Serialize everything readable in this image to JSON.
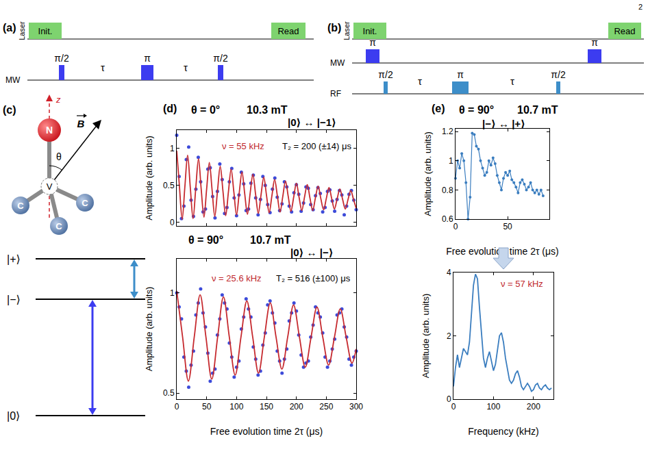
{
  "page_number": "2",
  "panel_labels": [
    "(a)",
    "(b)",
    "(c)",
    "(d)",
    "(e)"
  ],
  "pulse_sequences": [
    {
      "channels": [
        {
          "name": "Laser",
          "pulses": [
            "Init.",
            "Read"
          ]
        },
        {
          "name": "MW",
          "pulses": [
            "π/2",
            "π",
            "π/2"
          ],
          "delays": [
            "τ",
            "τ"
          ]
        }
      ]
    },
    {
      "channels": [
        {
          "name": "Laser",
          "pulses": [
            "Init.",
            "Read"
          ]
        },
        {
          "name": "MW",
          "pulses": [
            "π",
            "π"
          ]
        },
        {
          "name": "RF",
          "pulses": [
            "π/2",
            "π",
            "π/2"
          ],
          "delays": [
            "τ",
            "τ"
          ]
        }
      ]
    }
  ],
  "nv_center": {
    "atoms": {
      "nitrogen": "N",
      "vacancy": "V",
      "carbon": "C"
    },
    "axis": "z",
    "field": "B",
    "angle": "θ"
  },
  "energy_levels": [
    "|+⟩",
    "|−⟩",
    "|0⟩"
  ],
  "chart_data": [
    {
      "type": "scatter",
      "title": "θ = 0°",
      "subtitle": "10.3 mT",
      "annotations": [
        {
          "text": "|0⟩ ↔ |−1⟩"
        },
        {
          "text": "ν = 55 kHz",
          "color": "#c0282d"
        },
        {
          "text": "T₂ = 200 (±14) μs"
        }
      ],
      "y_label": "Amplitude (arb. units)",
      "xlim": [
        0,
        300
      ],
      "xticks": [
        0,
        50,
        100,
        150,
        200,
        250,
        300
      ],
      "ylim": [
        -0.05,
        1.25
      ],
      "yticks": [
        0,
        0.5,
        1
      ],
      "tick_labels": "y",
      "grid": false,
      "series": [
        {
          "type": "scatter",
          "marker": "circle",
          "color": "#3d4bd9",
          "x": [
            0,
            4,
            8,
            12,
            16,
            20,
            24,
            28,
            32,
            36,
            40,
            44,
            48,
            52,
            56,
            60,
            64,
            68,
            72,
            76,
            80,
            84,
            88,
            92,
            96,
            100,
            104,
            108,
            112,
            116,
            120,
            124,
            128,
            132,
            136,
            140,
            144,
            148,
            152,
            156,
            160,
            164,
            168,
            172,
            176,
            180,
            184,
            188,
            192,
            196,
            200,
            204,
            208,
            212,
            216,
            220,
            224,
            228,
            232,
            236,
            240,
            244,
            248,
            252,
            256,
            260,
            264,
            268,
            272,
            276,
            280,
            284,
            288,
            292,
            296,
            300
          ],
          "values": [
            1.18,
            0.62,
            0.05,
            0.22,
            0.85,
            1.02,
            0.3,
            0.08,
            0.45,
            0.88,
            0.55,
            0.14,
            0.18,
            0.72,
            0.74,
            0.35,
            0.06,
            0.42,
            0.79,
            0.58,
            0.12,
            0.2,
            0.55,
            0.73,
            0.33,
            0.09,
            0.37,
            0.68,
            0.52,
            0.16,
            0.18,
            0.53,
            0.64,
            0.33,
            0.1,
            0.31,
            0.62,
            0.5,
            0.24,
            0.13,
            0.45,
            0.6,
            0.34,
            0.16,
            0.25,
            0.55,
            0.48,
            0.22,
            0.14,
            0.4,
            0.51,
            0.38,
            0.15,
            0.26,
            0.48,
            0.46,
            0.24,
            0.17,
            0.36,
            0.47,
            0.39,
            0.14,
            0.2,
            0.42,
            0.44,
            0.29,
            0.15,
            0.31,
            0.43,
            0.37,
            0.1,
            0.22,
            0.38,
            0.43,
            0.3,
            0.17
          ]
        },
        {
          "type": "line",
          "line_style": "solid",
          "color": "#c62a2f",
          "x": [
            0,
            4.5,
            9.1,
            13.6,
            18.2,
            22.7,
            27.3,
            31.8,
            36.4,
            40.9,
            45.5,
            50,
            54.5,
            59.1,
            63.6,
            68.2,
            72.7,
            77.3,
            81.8,
            86.4,
            90.9,
            95.5,
            100,
            104.5,
            109.1,
            113.6,
            118.2,
            122.7,
            127.3,
            131.8,
            136.4,
            140.9,
            145.5,
            150,
            154.5,
            159.1,
            163.6,
            168.2,
            172.7,
            177.3,
            181.8,
            186.4,
            190.9,
            195.5,
            200,
            204.5,
            209.1,
            213.6,
            218.2,
            222.7,
            227.3,
            231.8,
            236.4,
            240.9,
            245.5,
            250,
            254.5,
            259.1,
            263.6,
            268.2,
            272.7,
            277.3,
            281.8,
            286.4,
            290.9,
            295.5,
            300
          ],
          "values": [
            0.97,
            0.49,
            0.04,
            0.48,
            0.91,
            0.47,
            0.05,
            0.46,
            0.86,
            0.45,
            0.07,
            0.45,
            0.81,
            0.44,
            0.08,
            0.43,
            0.76,
            0.42,
            0.09,
            0.41,
            0.72,
            0.41,
            0.1,
            0.4,
            0.68,
            0.39,
            0.11,
            0.39,
            0.65,
            0.38,
            0.12,
            0.37,
            0.61,
            0.37,
            0.13,
            0.36,
            0.58,
            0.36,
            0.14,
            0.35,
            0.56,
            0.35,
            0.15,
            0.34,
            0.53,
            0.34,
            0.16,
            0.34,
            0.51,
            0.33,
            0.16,
            0.33,
            0.49,
            0.32,
            0.17,
            0.32,
            0.47,
            0.32,
            0.18,
            0.32,
            0.45,
            0.31,
            0.18,
            0.31,
            0.43,
            0.31,
            0.19
          ]
        }
      ]
    },
    {
      "type": "scatter",
      "title": "θ = 90°",
      "subtitle": "10.7 mT",
      "annotations": [
        {
          "text": "|0⟩ ↔ |−⟩"
        },
        {
          "text": "ν = 25.6 kHz",
          "color": "#c0282d"
        },
        {
          "text": "T₂ = 516 (±100) μs"
        }
      ],
      "x_label": "Free evolution time 2τ (μs)",
      "y_label": "Amplitude (arb. units)",
      "xlim": [
        0,
        300
      ],
      "xticks": [
        0,
        50,
        100,
        150,
        200,
        250,
        300
      ],
      "ylim": [
        0.47,
        1.17
      ],
      "yticks": [
        0.5,
        1
      ],
      "grid": false,
      "series": [
        {
          "type": "scatter",
          "marker": "circle",
          "color": "#3d4bd9",
          "x": [
            0,
            4,
            8,
            12,
            16,
            20,
            24,
            28,
            32,
            36,
            40,
            44,
            48,
            52,
            56,
            60,
            64,
            68,
            72,
            76,
            80,
            84,
            88,
            92,
            96,
            100,
            104,
            108,
            112,
            116,
            120,
            124,
            128,
            132,
            136,
            140,
            144,
            148,
            152,
            156,
            160,
            164,
            168,
            172,
            176,
            180,
            184,
            188,
            192,
            196,
            200,
            204,
            208,
            212,
            216,
            220,
            224,
            228,
            232,
            236,
            240,
            244,
            248,
            252,
            256,
            260,
            264,
            268,
            272,
            276,
            280,
            284,
            288,
            292,
            296,
            300
          ],
          "values": [
            1.0,
            0.93,
            0.87,
            0.68,
            0.61,
            0.53,
            0.64,
            0.71,
            0.89,
            0.95,
            1.02,
            0.9,
            0.83,
            0.7,
            0.56,
            0.6,
            0.62,
            0.79,
            0.87,
            0.99,
            0.95,
            0.92,
            0.75,
            0.68,
            0.58,
            0.63,
            0.66,
            0.82,
            0.88,
            0.97,
            0.92,
            0.88,
            0.73,
            0.67,
            0.59,
            0.61,
            0.74,
            0.8,
            0.94,
            0.96,
            0.9,
            0.85,
            0.71,
            0.66,
            0.6,
            0.67,
            0.72,
            0.86,
            0.9,
            0.95,
            0.91,
            0.79,
            0.69,
            0.63,
            0.65,
            0.66,
            0.78,
            0.84,
            0.93,
            0.9,
            0.88,
            0.8,
            0.68,
            0.63,
            0.66,
            0.72,
            0.77,
            0.89,
            0.9,
            0.92,
            0.83,
            0.78,
            0.67,
            0.64,
            0.68,
            0.71
          ]
        },
        {
          "type": "line",
          "line_style": "solid",
          "color": "#c62a2f",
          "x": [
            0,
            9.8,
            19.5,
            29.3,
            39.1,
            48.8,
            58.6,
            68.4,
            78.1,
            87.9,
            97.7,
            107.4,
            117.2,
            127,
            136.7,
            146.5,
            156.3,
            166,
            175.8,
            185.5,
            195.3,
            205.1,
            214.8,
            224.6,
            234.4,
            244.1,
            253.9,
            263.7,
            273.4,
            283.2,
            293,
            300
          ],
          "values": [
            1.01,
            0.78,
            0.56,
            0.78,
            0.99,
            0.78,
            0.57,
            0.78,
            0.98,
            0.78,
            0.59,
            0.78,
            0.96,
            0.78,
            0.6,
            0.78,
            0.95,
            0.78,
            0.62,
            0.78,
            0.94,
            0.78,
            0.63,
            0.78,
            0.93,
            0.78,
            0.64,
            0.78,
            0.92,
            0.78,
            0.65,
            0.72
          ]
        }
      ]
    },
    {
      "type": "line",
      "title": "θ = 90°",
      "subtitle": "10.7 mT",
      "annotations": [
        {
          "text": "|−⟩ ↔ |+⟩"
        }
      ],
      "x_label": "Free evolution time 2τ (μs)",
      "y_label": "Amplitude (arb. units)",
      "xlim": [
        0,
        90
      ],
      "xticks": [
        0,
        50
      ],
      "ylim": [
        0.6,
        1.22
      ],
      "yticks": [
        0.6,
        0.8,
        1,
        1.2
      ],
      "grid": false,
      "series": [
        {
          "type": "line",
          "marker": "circle",
          "line_style": "solid",
          "color": "#3a7dbf",
          "x": [
            0,
            2,
            4,
            6,
            8,
            10,
            12,
            14,
            16,
            18,
            20,
            22,
            24,
            26,
            28,
            30,
            32,
            34,
            36,
            38,
            40,
            42,
            44,
            46,
            48,
            50,
            52,
            54,
            56,
            58,
            60,
            62,
            64,
            66,
            68,
            70,
            72,
            74,
            76,
            78,
            80,
            82,
            84
          ],
          "values": [
            0.88,
            1.0,
            0.95,
            1.05,
            1.0,
            0.85,
            0.6,
            0.75,
            1.19,
            1.18,
            1.1,
            1.08,
            1.0,
            0.95,
            0.9,
            0.92,
            1.0,
            0.97,
            1.02,
            0.98,
            0.9,
            0.85,
            0.8,
            0.88,
            0.92,
            0.9,
            0.93,
            0.87,
            0.85,
            0.82,
            0.78,
            0.85,
            0.87,
            0.84,
            0.8,
            0.82,
            0.85,
            0.8,
            0.78,
            0.8,
            0.77,
            0.8,
            0.76
          ]
        }
      ]
    },
    {
      "type": "line",
      "annotations": [
        {
          "text": "ν = 57 kHz",
          "color": "#c0282d"
        }
      ],
      "x_label": "Frequency (kHz)",
      "y_label": "Amplitude (arb. units)",
      "xlim": [
        0,
        250
      ],
      "xticks": [
        0,
        100,
        200
      ],
      "ylim": [
        0,
        4
      ],
      "yticks": [
        0,
        2,
        4
      ],
      "grid": false,
      "series": [
        {
          "type": "line",
          "line_style": "solid",
          "color": "#3a7dbf",
          "x": [
            0,
            5,
            10,
            15,
            20,
            25,
            30,
            35,
            40,
            45,
            50,
            55,
            60,
            65,
            70,
            75,
            80,
            85,
            90,
            95,
            100,
            105,
            110,
            115,
            120,
            125,
            130,
            135,
            140,
            145,
            150,
            155,
            160,
            165,
            170,
            175,
            180,
            185,
            190,
            195,
            200,
            205,
            210,
            215,
            220,
            225,
            230,
            235,
            240,
            245
          ],
          "values": [
            0.4,
            1.0,
            1.4,
            1.0,
            1.3,
            1.6,
            1.5,
            1.4,
            1.8,
            2.8,
            3.6,
            3.95,
            3.8,
            2.9,
            2.0,
            1.3,
            1.0,
            1.3,
            1.5,
            1.2,
            0.9,
            1.1,
            1.6,
            2.0,
            2.1,
            1.8,
            1.3,
            0.9,
            0.6,
            0.5,
            0.6,
            0.8,
            0.9,
            0.7,
            0.4,
            0.3,
            0.4,
            0.5,
            0.4,
            0.25,
            0.3,
            0.45,
            0.5,
            0.35,
            0.3,
            0.4,
            0.45,
            0.35,
            0.3,
            0.35
          ]
        }
      ]
    }
  ]
}
